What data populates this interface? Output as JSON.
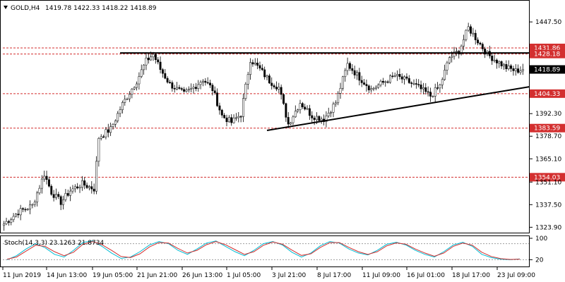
{
  "header": {
    "symbol": "GOLD,H4",
    "ohlc": "1419.78 1422.33 1418.22 1418.89"
  },
  "colors": {
    "bull": "#2e7d32",
    "bear": "#c62828",
    "level_line": "#d32f2f",
    "level_label_bg": "#d32f2f",
    "price_label_bg": "#000000",
    "stoch_main": "#00bcd4",
    "stoch_signal": "#d32f2f"
  },
  "chart_data": [
    {
      "type": "candlestick",
      "title": "GOLD,H4",
      "ylim": [
        1321.5,
        1459.0
      ],
      "price_ticks": [
        "1447.50",
        "1431.86",
        "1428.18",
        "1418.89",
        "1404.33",
        "1392.30",
        "1383.59",
        "1378.70",
        "1365.10",
        "1354.03",
        "1351.10",
        "1337.50",
        "1323.90"
      ],
      "x_ticks": [
        "11 Jun 2019",
        "14 Jun 13:00",
        "19 Jun 05:00",
        "21 Jun 21:00",
        "26 Jun 13:00",
        "1 Jul 05:00",
        "3 Jul 21:00",
        "8 Jul 17:00",
        "11 Jul 09:00",
        "16 Jul 01:00",
        "18 Jul 17:00",
        "23 Jul 09:00"
      ],
      "levels": [
        {
          "value": 1431.86,
          "label": "1431.86"
        },
        {
          "value": 1428.18,
          "label": "1428.18"
        },
        {
          "value": 1404.33,
          "label": "1404.33"
        },
        {
          "value": 1383.59,
          "label": "1383.59"
        },
        {
          "value": 1354.03,
          "label": "1354.03"
        }
      ],
      "current_price": {
        "value": 1418.89,
        "label": "1418.89"
      },
      "trendlines": [
        {
          "name": "resistance",
          "start": {
            "bar": 49,
            "price": 1428.8
          },
          "end": {
            "bar": 244,
            "price": 1428.8
          }
        },
        {
          "name": "rising-support",
          "start": {
            "bar": 111,
            "price": 1382.2
          },
          "end": {
            "bar": 250,
            "price": 1408.5
          }
        }
      ],
      "anchors": [
        [
          0,
          1326
        ],
        [
          6,
          1333
        ],
        [
          12,
          1337
        ],
        [
          17,
          1356
        ],
        [
          20,
          1345
        ],
        [
          24,
          1339
        ],
        [
          28,
          1346
        ],
        [
          33,
          1350
        ],
        [
          38,
          1347
        ],
        [
          40,
          1378
        ],
        [
          45,
          1383
        ],
        [
          50,
          1398
        ],
        [
          56,
          1412
        ],
        [
          60,
          1424
        ],
        [
          63,
          1428
        ],
        [
          66,
          1419
        ],
        [
          70,
          1410
        ],
        [
          76,
          1404
        ],
        [
          80,
          1408
        ],
        [
          84,
          1413
        ],
        [
          88,
          1407
        ],
        [
          92,
          1391
        ],
        [
          96,
          1387
        ],
        [
          100,
          1392
        ],
        [
          104,
          1425
        ],
        [
          108,
          1419
        ],
        [
          112,
          1412
        ],
        [
          116,
          1408
        ],
        [
          120,
          1386
        ],
        [
          125,
          1399
        ],
        [
          130,
          1391
        ],
        [
          135,
          1389
        ],
        [
          140,
          1399
        ],
        [
          145,
          1422
        ],
        [
          150,
          1414
        ],
        [
          155,
          1407
        ],
        [
          160,
          1411
        ],
        [
          165,
          1415
        ],
        [
          170,
          1412
        ],
        [
          175,
          1408
        ],
        [
          180,
          1403
        ],
        [
          184,
          1409
        ],
        [
          188,
          1426
        ],
        [
          192,
          1430
        ],
        [
          196,
          1444
        ],
        [
          200,
          1436
        ],
        [
          204,
          1428
        ],
        [
          208,
          1424
        ],
        [
          212,
          1420
        ],
        [
          216,
          1418
        ],
        [
          219,
          1419
        ]
      ]
    },
    {
      "type": "line",
      "title": "Stoch(14,3,3) 23.1263 21.8734",
      "ylim": [
        0,
        100
      ],
      "yticks": [
        100,
        20
      ],
      "levels": [
        80,
        20
      ],
      "series": [
        {
          "name": "main",
          "values": [
            20,
            35,
            60,
            80,
            65,
            40,
            30,
            55,
            85,
            90,
            70,
            45,
            25,
            30,
            50,
            75,
            88,
            80,
            55,
            40,
            60,
            82,
            90,
            70,
            50,
            35,
            55,
            80,
            88,
            75,
            48,
            30,
            45,
            72,
            88,
            82,
            60,
            45,
            38,
            55,
            78,
            85,
            75,
            55,
            40,
            30,
            50,
            75,
            85,
            70,
            40,
            28,
            22,
            20,
            23
          ]
        },
        {
          "name": "signal",
          "values": [
            22,
            30,
            52,
            74,
            70,
            50,
            35,
            48,
            78,
            88,
            76,
            55,
            32,
            28,
            42,
            68,
            84,
            82,
            62,
            45,
            55,
            76,
            88,
            76,
            58,
            40,
            50,
            74,
            86,
            78,
            56,
            36,
            42,
            66,
            84,
            84,
            66,
            50,
            40,
            50,
            72,
            83,
            78,
            60,
            45,
            33,
            45,
            70,
            82,
            74,
            48,
            32,
            24,
            21,
            22
          ]
        }
      ]
    }
  ]
}
